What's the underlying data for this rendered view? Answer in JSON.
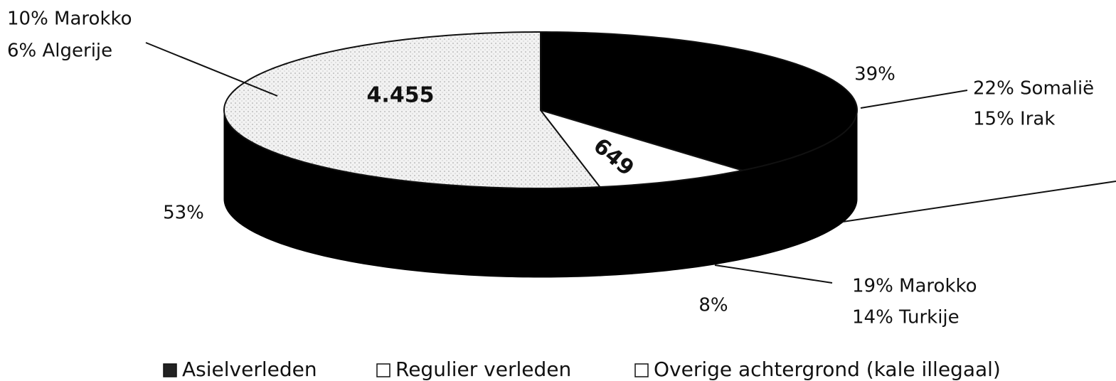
{
  "chart_data": {
    "type": "pie",
    "categories": [
      "Asielverleden",
      "Regulier verleden",
      "Overige achtergrond (kale illegaal)"
    ],
    "values": [
      39,
      8,
      53
    ],
    "value_labels": [
      "39%",
      "8%",
      "53%"
    ],
    "counts": [
      null,
      649,
      4455
    ],
    "count_labels": [
      null,
      "649",
      "4.455"
    ],
    "colors": [
      "#000000",
      "#ffffff",
      "#e4e4e4"
    ],
    "side_color": "#000000",
    "annotations": [
      "10% Marokko",
      "6% Algerije",
      "22% Somalië",
      "15% Irak",
      "19% Marokko",
      "14% Turkije"
    ],
    "legend": "bottom"
  }
}
